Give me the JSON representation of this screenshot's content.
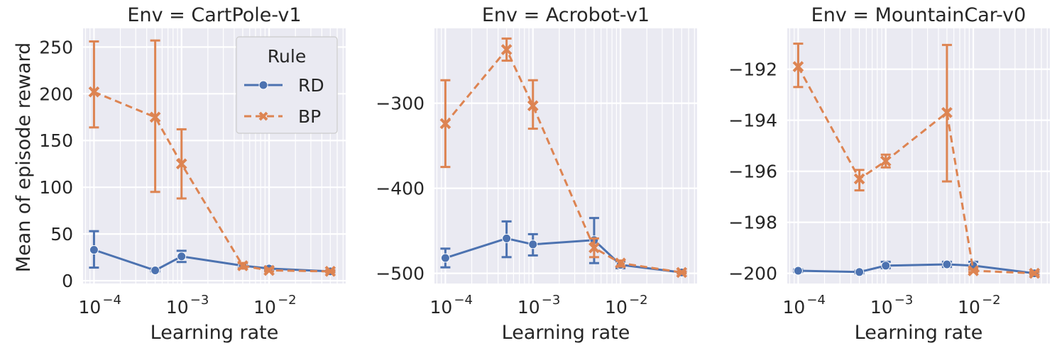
{
  "figure": {
    "ylabel": "Mean of episode reward",
    "xlabel": "Learning rate"
  },
  "legend": {
    "title": "Rule",
    "entries": [
      "RD",
      "BP"
    ]
  },
  "colors": {
    "RD": "#4c72b0",
    "BP": "#dd8452",
    "panel_bg": "#eaeaf2",
    "grid": "#ffffff"
  },
  "chart_data": [
    {
      "type": "line",
      "title": "Env = CartPole-v1",
      "xlabel": "Learning rate",
      "ylabel": "Mean of episode reward",
      "xscale": "log",
      "xlim": [
        7.5e-05,
        0.075
      ],
      "xticks": [
        0.0001,
        0.001,
        0.01
      ],
      "xtick_labels": [
        "10",
        "10",
        "10"
      ],
      "xtick_exponents": [
        "−4",
        "−3",
        "−2"
      ],
      "ylim": [
        -3,
        270
      ],
      "yticks": [
        0,
        50,
        100,
        150,
        200,
        250
      ],
      "ytick_labels": [
        "0",
        "50",
        "100",
        "150",
        "200",
        "250"
      ],
      "grid": true,
      "legend": "upper right",
      "x": [
        0.0001,
        0.0005,
        0.001,
        0.005,
        0.01,
        0.05
      ],
      "series": [
        {
          "name": "RD",
          "values": [
            33,
            11,
            26,
            16,
            13,
            10
          ],
          "err_low": [
            14,
            10,
            20,
            14,
            11,
            9
          ],
          "err_high": [
            53,
            13,
            32,
            18,
            15,
            11
          ]
        },
        {
          "name": "BP",
          "values": [
            202,
            175,
            125,
            16,
            11,
            10
          ],
          "err_low": [
            164,
            95,
            88,
            13,
            10,
            9
          ],
          "err_high": [
            256,
            257,
            162,
            19,
            13,
            11
          ]
        }
      ]
    },
    {
      "type": "line",
      "title": "Env = Acrobot-v1",
      "xlabel": "Learning rate",
      "xscale": "log",
      "xlim": [
        7.5e-05,
        0.075
      ],
      "xticks": [
        0.0001,
        0.001,
        0.01
      ],
      "xtick_labels": [
        "10",
        "10",
        "10"
      ],
      "xtick_exponents": [
        "−4",
        "−3",
        "−2"
      ],
      "ylim": [
        -512,
        -212
      ],
      "yticks": [
        -500,
        -400,
        -300
      ],
      "ytick_labels": [
        "−500",
        "−400",
        "−300"
      ],
      "grid": true,
      "x": [
        0.0001,
        0.0005,
        0.001,
        0.005,
        0.01,
        0.05
      ],
      "series": [
        {
          "name": "RD",
          "values": [
            -482,
            -459,
            -466,
            -461,
            -490,
            -499
          ],
          "err_low": [
            -493,
            -481,
            -479,
            -488,
            -494,
            -500
          ],
          "err_high": [
            -471,
            -439,
            -454,
            -435,
            -486,
            -498
          ]
        },
        {
          "name": "BP",
          "values": [
            -324,
            -237,
            -303,
            -470,
            -488,
            -499
          ],
          "err_low": [
            -375,
            -250,
            -330,
            -481,
            -492,
            -500
          ],
          "err_high": [
            -273,
            -224,
            -273,
            -459,
            -485,
            -498
          ]
        }
      ]
    },
    {
      "type": "line",
      "title": "Env = MountainCar-v0",
      "xlabel": "Learning rate",
      "xscale": "log",
      "xlim": [
        7.5e-05,
        0.075
      ],
      "xticks": [
        0.0001,
        0.001,
        0.01
      ],
      "xtick_labels": [
        "10",
        "10",
        "10"
      ],
      "xtick_exponents": [
        "−4",
        "−3",
        "−2"
      ],
      "ylim": [
        -200.4,
        -190.4
      ],
      "yticks": [
        -200,
        -198,
        -196,
        -194,
        -192
      ],
      "ytick_labels": [
        "−200",
        "−198",
        "−196",
        "−194",
        "−192"
      ],
      "grid": true,
      "x": [
        0.0001,
        0.0005,
        0.001,
        0.005,
        0.01,
        0.05
      ],
      "series": [
        {
          "name": "RD",
          "values": [
            -199.9,
            -199.95,
            -199.7,
            -199.65,
            -199.7,
            -200
          ],
          "err_low": [
            -199.95,
            -200.0,
            -199.8,
            -199.75,
            -199.85,
            -200.05
          ],
          "err_high": [
            -199.85,
            -199.9,
            -199.55,
            -199.55,
            -199.55,
            -199.95
          ]
        },
        {
          "name": "BP",
          "values": [
            -191.9,
            -196.3,
            -195.6,
            -193.7,
            -199.9,
            -200
          ],
          "err_low": [
            -192.7,
            -196.75,
            -195.85,
            -196.4,
            -199.95,
            -200.05
          ],
          "err_high": [
            -191.0,
            -195.95,
            -195.35,
            -191.05,
            -199.85,
            -199.95
          ]
        }
      ]
    }
  ]
}
